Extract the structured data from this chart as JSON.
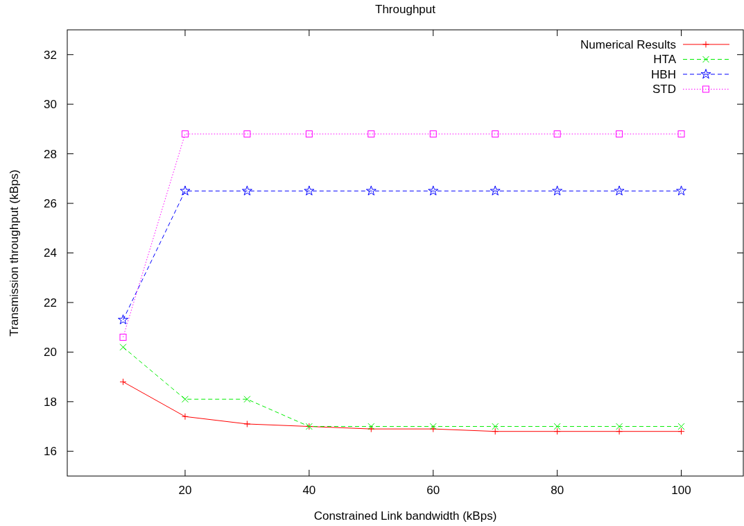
{
  "chart_data": {
    "type": "line",
    "title": "Throughput",
    "xlabel": "Constrained Link bandwidth (kBps)",
    "ylabel": "Transmission throughput (kBps)",
    "x": [
      10,
      20,
      30,
      40,
      50,
      60,
      70,
      80,
      90,
      100
    ],
    "series": [
      {
        "name": "Numerical Results",
        "color": "#ff0000",
        "marker": "plus",
        "line_style": "solid",
        "values": [
          18.8,
          17.4,
          17.1,
          17.0,
          16.9,
          16.9,
          16.8,
          16.8,
          16.8,
          16.8
        ]
      },
      {
        "name": "HTA",
        "color": "#00ee00",
        "marker": "cross",
        "line_style": "dashed",
        "values": [
          20.2,
          18.1,
          18.1,
          17.0,
          17.0,
          17.0,
          17.0,
          17.0,
          17.0,
          17.0
        ]
      },
      {
        "name": "HBH",
        "color": "#0000ff",
        "marker": "star",
        "line_style": "dashed",
        "values": [
          21.3,
          26.5,
          26.5,
          26.5,
          26.5,
          26.5,
          26.5,
          26.5,
          26.5,
          26.5
        ]
      },
      {
        "name": "STD",
        "color": "#ff00ff",
        "marker": "square",
        "line_style": "dotted",
        "values": [
          20.6,
          28.8,
          28.8,
          28.8,
          28.8,
          28.8,
          28.8,
          28.8,
          28.8,
          28.8
        ]
      }
    ],
    "xlim": [
      1,
      110
    ],
    "xticks": [
      20,
      40,
      60,
      80,
      100
    ],
    "ylim": [
      15,
      33
    ],
    "yticks": [
      16,
      18,
      20,
      22,
      24,
      26,
      28,
      30,
      32
    ],
    "grid": false,
    "legend": "top right"
  }
}
